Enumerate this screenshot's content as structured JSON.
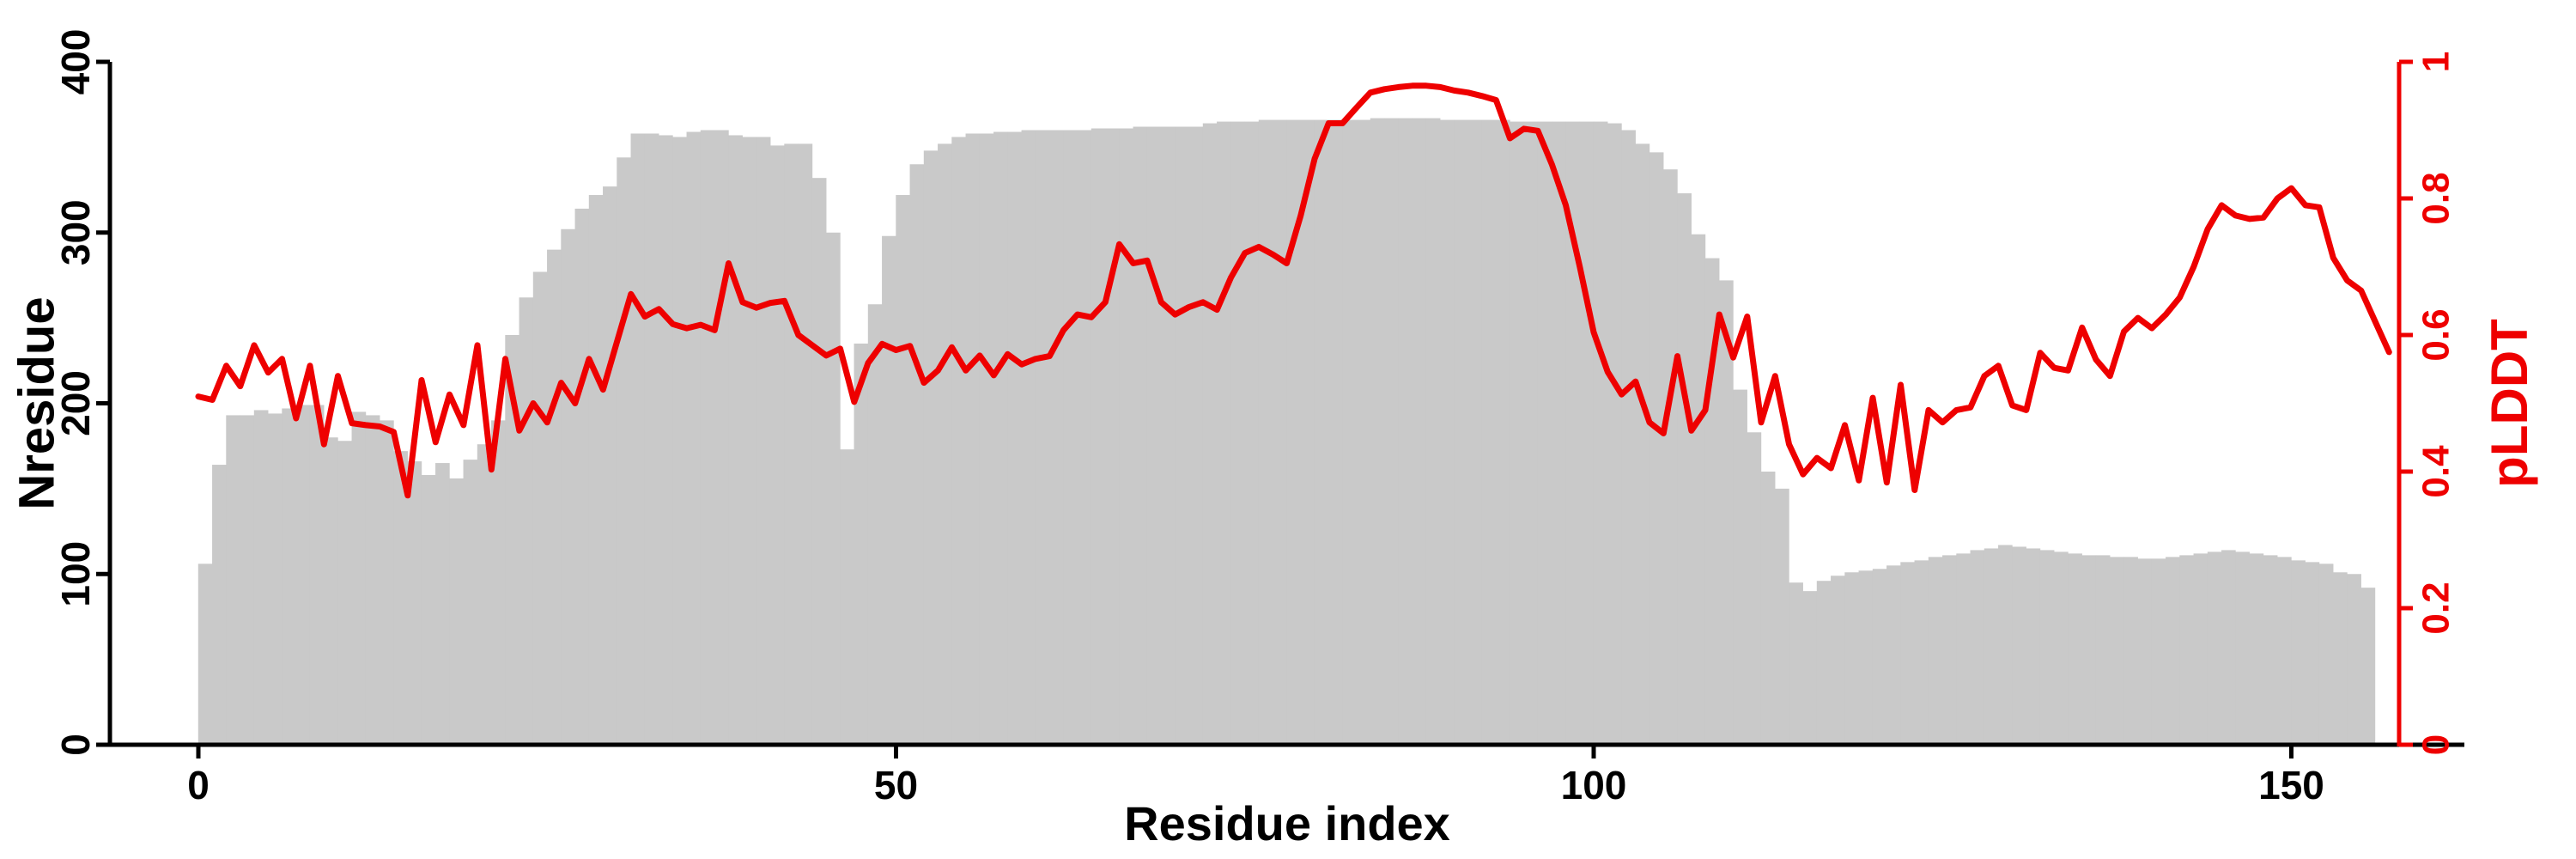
{
  "chart_data": {
    "type": "bar",
    "subtype": "dual-axis bar+line",
    "title": "",
    "xlabel": "Residue index",
    "ylabel_left": "Nresidue",
    "ylabel_right": "pLDDT",
    "x_tick_labels": [
      "0",
      "50",
      "100",
      "150"
    ],
    "x_tick_values": [
      0,
      50,
      100,
      150
    ],
    "y_left_tick_labels": [
      "0",
      "100",
      "200",
      "300",
      "400"
    ],
    "y_left_tick_values": [
      0,
      100,
      200,
      300,
      400
    ],
    "y_left_range": [
      0,
      400
    ],
    "y_right_tick_labels": [
      "0",
      "0.2",
      "0.4",
      "0.6",
      "0.8",
      "1"
    ],
    "y_right_tick_values": [
      0,
      0.2,
      0.4,
      0.6,
      0.8,
      1
    ],
    "y_right_range": [
      0,
      1
    ],
    "x_range_residues": [
      0,
      158
    ],
    "grid": "off",
    "legend": "none",
    "series": [
      {
        "name": "Nresidue",
        "type": "bar",
        "axis": "left",
        "color": "#c9c9c9",
        "values": [
          106,
          164,
          193,
          193,
          196,
          194,
          197,
          199,
          199,
          180,
          178,
          195,
          193,
          190,
          172,
          166,
          158,
          165,
          156,
          167,
          176,
          190,
          240,
          262,
          277,
          290,
          302,
          314,
          322,
          327,
          344,
          358,
          358,
          357,
          356,
          359,
          360,
          360,
          357,
          356,
          356,
          351,
          352,
          352,
          332,
          300,
          173,
          235,
          258,
          298,
          322,
          340,
          348,
          352,
          356,
          358,
          358,
          359,
          359,
          360,
          360,
          360,
          360,
          360,
          361,
          361,
          361,
          362,
          362,
          362,
          362,
          362,
          364,
          365,
          365,
          365,
          366,
          366,
          366,
          366,
          366,
          366,
          366,
          366,
          367,
          367,
          367,
          367,
          367,
          366,
          366,
          366,
          366,
          366,
          365,
          365,
          365,
          365,
          365,
          365,
          365,
          364,
          360,
          352,
          347,
          337,
          323,
          299,
          285,
          272,
          208,
          183,
          160,
          150,
          95,
          90,
          96,
          99,
          101,
          102,
          103,
          105,
          107,
          108,
          110,
          111,
          112,
          114,
          115,
          117,
          116,
          115,
          114,
          113,
          112,
          111,
          111,
          110,
          110,
          109,
          109,
          110,
          111,
          112,
          113,
          114,
          113,
          112,
          111,
          110,
          108,
          107,
          106,
          101,
          100,
          92
        ]
      },
      {
        "name": "pLDDT",
        "type": "line",
        "axis": "right",
        "color": "#ee0000",
        "values": [
          0.51,
          0.505,
          0.555,
          0.525,
          0.585,
          0.545,
          0.565,
          0.478,
          0.555,
          0.44,
          0.54,
          0.471,
          0.468,
          0.466,
          0.458,
          0.365,
          0.534,
          0.443,
          0.513,
          0.468,
          0.585,
          0.403,
          0.565,
          0.46,
          0.5,
          0.472,
          0.53,
          0.5,
          0.565,
          0.52,
          0.59,
          0.66,
          0.627,
          0.638,
          0.616,
          0.61,
          0.615,
          0.607,
          0.705,
          0.648,
          0.64,
          0.647,
          0.65,
          0.6,
          0.585,
          0.57,
          0.58,
          0.502,
          0.559,
          0.587,
          0.578,
          0.584,
          0.53,
          0.548,
          0.582,
          0.548,
          0.57,
          0.541,
          0.572,
          0.557,
          0.565,
          0.569,
          0.607,
          0.63,
          0.626,
          0.648,
          0.733,
          0.705,
          0.709,
          0.648,
          0.63,
          0.641,
          0.648,
          0.637,
          0.684,
          0.72,
          0.729,
          0.718,
          0.705,
          0.775,
          0.858,
          0.91,
          0.91,
          0.933,
          0.955,
          0.96,
          0.963,
          0.965,
          0.965,
          0.963,
          0.958,
          0.955,
          0.95,
          0.944,
          0.888,
          0.902,
          0.899,
          0.85,
          0.79,
          0.7,
          0.604,
          0.546,
          0.513,
          0.532,
          0.472,
          0.456,
          0.569,
          0.46,
          0.49,
          0.63,
          0.567,
          0.627,
          0.472,
          0.54,
          0.44,
          0.396,
          0.42,
          0.405,
          0.468,
          0.387,
          0.508,
          0.384,
          0.527,
          0.373,
          0.49,
          0.472,
          0.49,
          0.494,
          0.54,
          0.555,
          0.497,
          0.49,
          0.574,
          0.552,
          0.548,
          0.611,
          0.564,
          0.54,
          0.605,
          0.625,
          0.61,
          0.63,
          0.655,
          0.7,
          0.755,
          0.79,
          0.775,
          0.77,
          0.772,
          0.8,
          0.815,
          0.79,
          0.787,
          0.713,
          0.68,
          0.665,
          0.62,
          0.575
        ]
      }
    ]
  },
  "colors": {
    "background": "#ffffff",
    "axis_black": "#000000",
    "axis_red": "#ee0000",
    "bar_gray": "#c9c9c9",
    "line_red": "#ee0000"
  }
}
